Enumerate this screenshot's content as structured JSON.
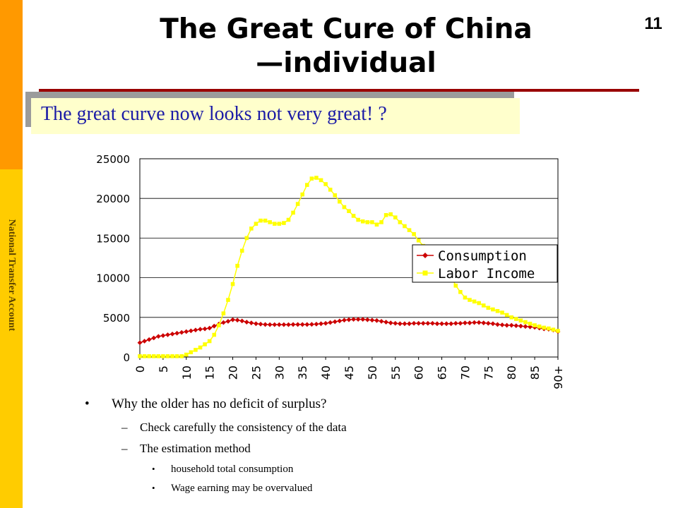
{
  "sidebar": {
    "label": "National Transfer Account"
  },
  "slide": {
    "title_line1": "The Great Cure of China",
    "title_line2": "—individual",
    "page_number": "11",
    "subtitle": "The great curve now looks not very great! ?"
  },
  "bullets": {
    "main": "Why the older has no deficit of surplus?",
    "sub": [
      "Check carefully the consistency of the data",
      "The estimation method"
    ],
    "subsub": [
      "household total consumption",
      "Wage earning may be overvalued"
    ]
  },
  "chart_data": {
    "type": "line",
    "x": [
      0,
      1,
      2,
      3,
      4,
      5,
      6,
      7,
      8,
      9,
      10,
      11,
      12,
      13,
      14,
      15,
      16,
      17,
      18,
      19,
      20,
      21,
      22,
      23,
      24,
      25,
      26,
      27,
      28,
      29,
      30,
      31,
      32,
      33,
      34,
      35,
      36,
      37,
      38,
      39,
      40,
      41,
      42,
      43,
      44,
      45,
      46,
      47,
      48,
      49,
      50,
      51,
      52,
      53,
      54,
      55,
      56,
      57,
      58,
      59,
      60,
      61,
      62,
      63,
      64,
      65,
      66,
      67,
      68,
      69,
      70,
      71,
      72,
      73,
      74,
      75,
      76,
      77,
      78,
      79,
      80,
      81,
      82,
      83,
      84,
      85,
      86,
      87,
      88,
      89,
      90
    ],
    "x_tick_labels": [
      "0",
      "5",
      "10",
      "15",
      "20",
      "25",
      "30",
      "35",
      "40",
      "45",
      "50",
      "55",
      "60",
      "65",
      "70",
      "75",
      "80",
      "85",
      "90+"
    ],
    "ylim": [
      0,
      25000
    ],
    "y_ticks": [
      "0",
      "5000",
      "10000",
      "15000",
      "20000",
      "25000"
    ],
    "legend_position": "right",
    "series": [
      {
        "name": "Consumption",
        "color": "#cc0000",
        "marker": "diamond",
        "values": [
          1800,
          2000,
          2200,
          2400,
          2600,
          2700,
          2800,
          2900,
          3000,
          3100,
          3200,
          3300,
          3400,
          3500,
          3550,
          3650,
          3900,
          4150,
          4350,
          4500,
          4700,
          4650,
          4550,
          4400,
          4300,
          4200,
          4150,
          4100,
          4080,
          4080,
          4080,
          4080,
          4080,
          4100,
          4100,
          4100,
          4100,
          4120,
          4150,
          4200,
          4250,
          4350,
          4450,
          4550,
          4650,
          4700,
          4750,
          4750,
          4750,
          4700,
          4650,
          4600,
          4500,
          4400,
          4300,
          4250,
          4200,
          4200,
          4200,
          4250,
          4250,
          4250,
          4250,
          4250,
          4200,
          4200,
          4200,
          4200,
          4250,
          4250,
          4300,
          4300,
          4350,
          4350,
          4300,
          4250,
          4200,
          4100,
          4050,
          4000,
          4000,
          3950,
          3900,
          3850,
          3800,
          3750,
          3650,
          3550,
          3500,
          3400,
          3200
        ]
      },
      {
        "name": "Labor Income",
        "color": "#ffff00",
        "marker": "square",
        "values": [
          100,
          100,
          100,
          100,
          100,
          100,
          100,
          100,
          100,
          100,
          300,
          600,
          900,
          1200,
          1600,
          2000,
          2800,
          4000,
          5500,
          7200,
          9200,
          11500,
          13400,
          15000,
          16200,
          16800,
          17200,
          17200,
          17000,
          16800,
          16800,
          16900,
          17300,
          18200,
          19300,
          20500,
          21700,
          22500,
          22600,
          22300,
          21800,
          21100,
          20400,
          19600,
          18900,
          18400,
          17800,
          17300,
          17100,
          17000,
          17000,
          16700,
          17000,
          17900,
          18000,
          17600,
          17000,
          16500,
          16000,
          15500,
          14700,
          14000,
          13400,
          12700,
          12100,
          11900,
          11200,
          10200,
          9000,
          8200,
          7500,
          7200,
          7000,
          6800,
          6500,
          6200,
          6000,
          5800,
          5600,
          5300,
          5000,
          4800,
          4600,
          4400,
          4200,
          4000,
          3850,
          3700,
          3600,
          3450,
          3300
        ]
      }
    ]
  }
}
